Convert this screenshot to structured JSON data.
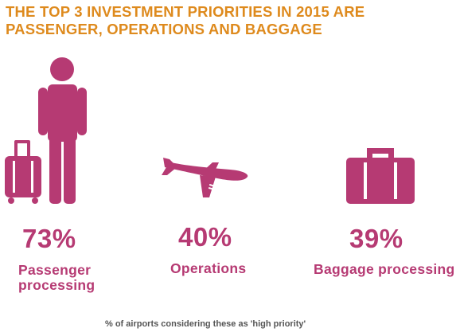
{
  "title": "THE TOP 3 INVESTMENT PRIORITIES IN 2015 ARE PASSENGER, OPERATIONS AND BAGGAGE",
  "colors": {
    "title": "#de8a1d",
    "accent": "#b63a73",
    "footnote": "#555555"
  },
  "items": [
    {
      "icon": "passenger-with-luggage-icon",
      "value": "73%",
      "label_line1": "Passenger",
      "label_line2": "processing"
    },
    {
      "icon": "airplane-icon",
      "value": "40%",
      "label": "Operations"
    },
    {
      "icon": "suitcase-icon",
      "value": "39%",
      "label": "Baggage processing"
    }
  ],
  "footnote": "% of airports considering these as 'high priority'"
}
